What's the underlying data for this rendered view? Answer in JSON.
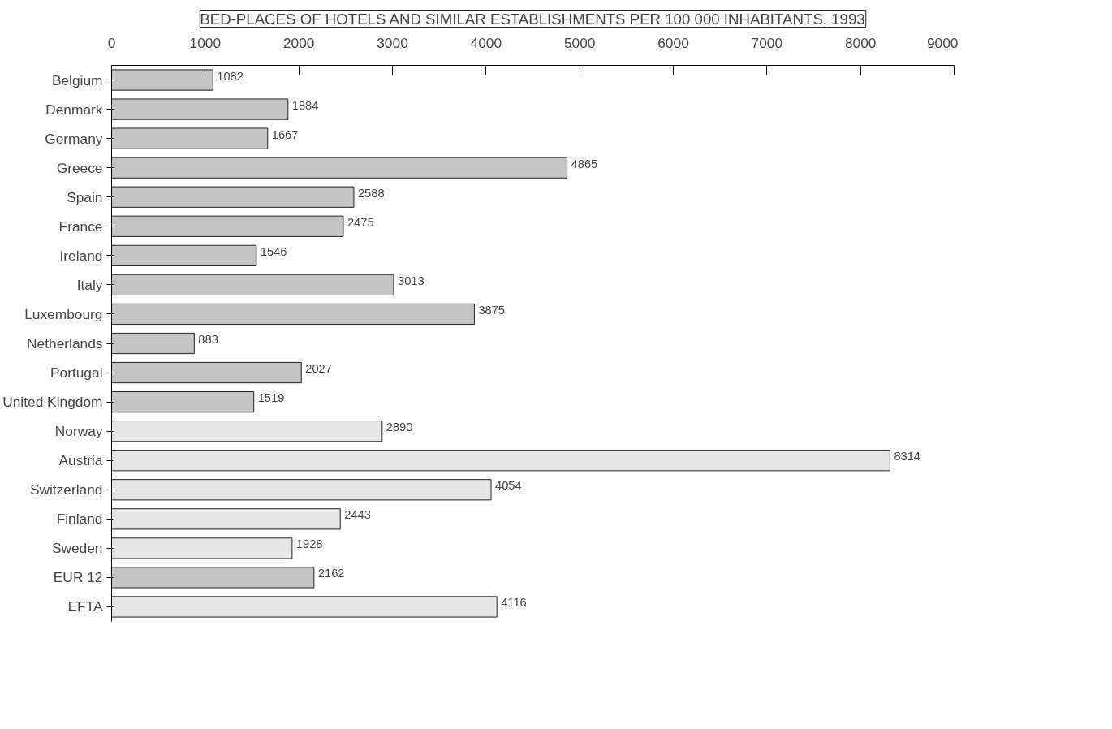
{
  "chart_data": {
    "type": "bar",
    "orientation": "horizontal",
    "title": "BED-PLACES OF HOTELS AND SIMILAR ESTABLISHMENTS PER 100 000 INHABITANTS, 1993",
    "categories": [
      "Belgium",
      "Denmark",
      "Germany",
      "Greece",
      "Spain",
      "France",
      "Ireland",
      "Italy",
      "Luxembourg",
      "Netherlands",
      "Portugal",
      "United Kingdom",
      "Norway",
      "Austria",
      "Switzerland",
      "Finland",
      "Sweden",
      "EUR 12",
      "EFTA"
    ],
    "values": [
      1082,
      1884,
      1667,
      4865,
      2588,
      2475,
      1546,
      3013,
      3875,
      883,
      2027,
      1519,
      2890,
      8314,
      4054,
      2443,
      1928,
      2162,
      4116
    ],
    "colors": [
      "#c4c4c4",
      "#c4c4c4",
      "#c4c4c4",
      "#c4c4c4",
      "#c4c4c4",
      "#c4c4c4",
      "#c4c4c4",
      "#c4c4c4",
      "#c4c4c4",
      "#c4c4c4",
      "#c4c4c4",
      "#c4c4c4",
      "#e6e6e6",
      "#e6e6e6",
      "#e6e6e6",
      "#e6e6e6",
      "#e6e6e6",
      "#c4c4c4",
      "#e6e6e6"
    ],
    "xlim": [
      0,
      9000
    ],
    "xticks": [
      0,
      1000,
      2000,
      3000,
      4000,
      5000,
      6000,
      7000,
      8000,
      9000
    ],
    "data_labels": true,
    "grid": false
  }
}
